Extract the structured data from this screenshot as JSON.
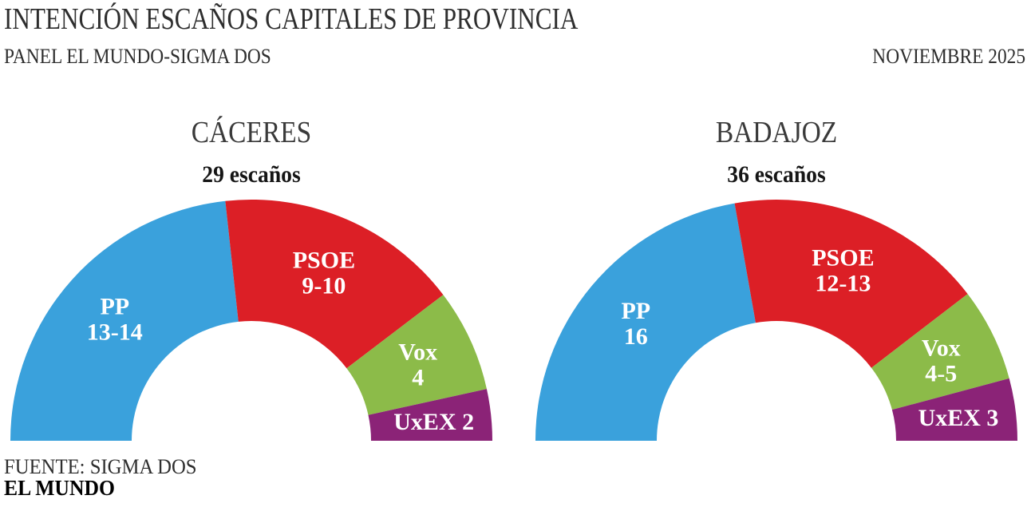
{
  "header": {
    "title": "INTENCIÓN ESCAÑOS CAPITALES DE PROVINCIA",
    "subtitle": "PANEL EL MUNDO-SIGMA DOS",
    "date": "NOVIEMBRE 2025"
  },
  "footer": {
    "source": "FUENTE: SIGMA DOS",
    "brand": "EL MUNDO"
  },
  "party_colors": {
    "PP": "#3AA1DC",
    "PSOE": "#DC1F26",
    "Vox": "#8CBB49",
    "UxEX": "#8B2377"
  },
  "chart_data": [
    {
      "type": "half_donut",
      "city": "CÁCERES",
      "seats_text": "29 escaños",
      "total_seats": 29,
      "legend_position": "inside-segments",
      "segments": [
        {
          "party": "PP",
          "seats": "13-14",
          "value": 13.5,
          "color": "#3AA1DC",
          "single_line": false
        },
        {
          "party": "PSOE",
          "seats": "9-10",
          "value": 9.5,
          "color": "#DC1F26",
          "single_line": false
        },
        {
          "party": "Vox",
          "seats": "4",
          "value": 4,
          "color": "#8CBB49",
          "single_line": false
        },
        {
          "party": "UxEX",
          "seats": "2",
          "value": 2,
          "color": "#8B2377",
          "single_line": true
        }
      ]
    },
    {
      "type": "half_donut",
      "city": "BADAJOZ",
      "seats_text": "36 escaños",
      "total_seats": 36,
      "legend_position": "inside-segments",
      "segments": [
        {
          "party": "PP",
          "seats": "16",
          "value": 16,
          "color": "#3AA1DC",
          "single_line": false
        },
        {
          "party": "PSOE",
          "seats": "12-13",
          "value": 12.5,
          "color": "#DC1F26",
          "single_line": false
        },
        {
          "party": "Vox",
          "seats": "4-5",
          "value": 4.5,
          "color": "#8CBB49",
          "single_line": false
        },
        {
          "party": "UxEX",
          "seats": "3",
          "value": 3,
          "color": "#8B2377",
          "single_line": true
        }
      ]
    }
  ]
}
